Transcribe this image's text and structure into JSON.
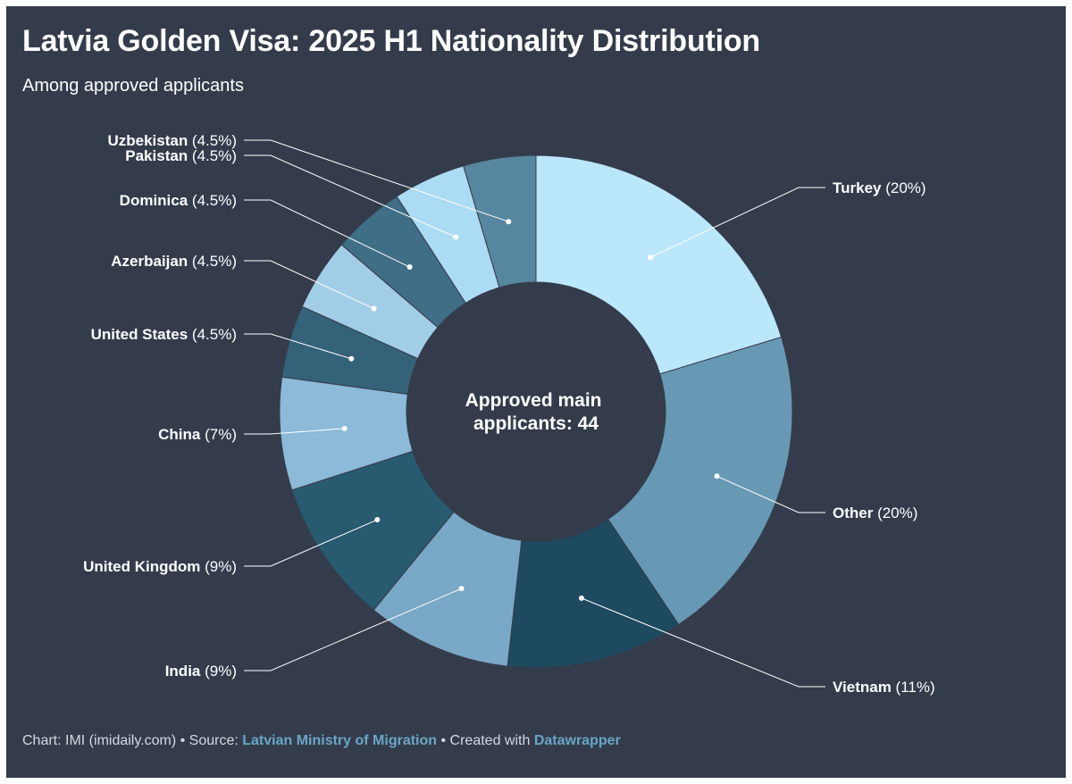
{
  "title": "Latvia Golden Visa: 2025 H1 Nationality Distribution",
  "subtitle": "Among approved applicants",
  "center_label": [
    "Approved main",
    "applicants: 44"
  ],
  "footer": {
    "chart_prefix": "Chart: IMI (imidaily.com) • Source: ",
    "source": "Latvian Ministry of Migration",
    "created_prefix": " • Created with ",
    "tool": "Datawrapper"
  },
  "chart_data": {
    "type": "pie",
    "variant": "donut",
    "total": 44,
    "slices": [
      {
        "label": "Turkey",
        "pct_label": "(20%)",
        "value": 20,
        "color": "#bbe7fb"
      },
      {
        "label": "Other",
        "pct_label": "(20%)",
        "value": 20,
        "color": "#6899b4"
      },
      {
        "label": "Vietnam",
        "pct_label": "(11%)",
        "value": 11,
        "color": "#1e4a60"
      },
      {
        "label": "India",
        "pct_label": "(9%)",
        "value": 9,
        "color": "#79a8c6"
      },
      {
        "label": "United Kingdom",
        "pct_label": "(9%)",
        "value": 9,
        "color": "#285a70"
      },
      {
        "label": "China",
        "pct_label": "(7%)",
        "value": 7,
        "color": "#8cbad8"
      },
      {
        "label": "United States",
        "pct_label": "(4.5%)",
        "value": 4.5,
        "color": "#346279"
      },
      {
        "label": "Azerbaijan",
        "pct_label": "(4.5%)",
        "value": 4.5,
        "color": "#a2cde7"
      },
      {
        "label": "Dominica",
        "pct_label": "(4.5%)",
        "value": 4.5,
        "color": "#3f6e86"
      },
      {
        "label": "Pakistan",
        "pct_label": "(4.5%)",
        "value": 4.5,
        "color": "#acdcf4"
      },
      {
        "label": "Uzbekistan",
        "pct_label": "(4.5%)",
        "value": 4.5,
        "color": "#57869f"
      }
    ]
  }
}
